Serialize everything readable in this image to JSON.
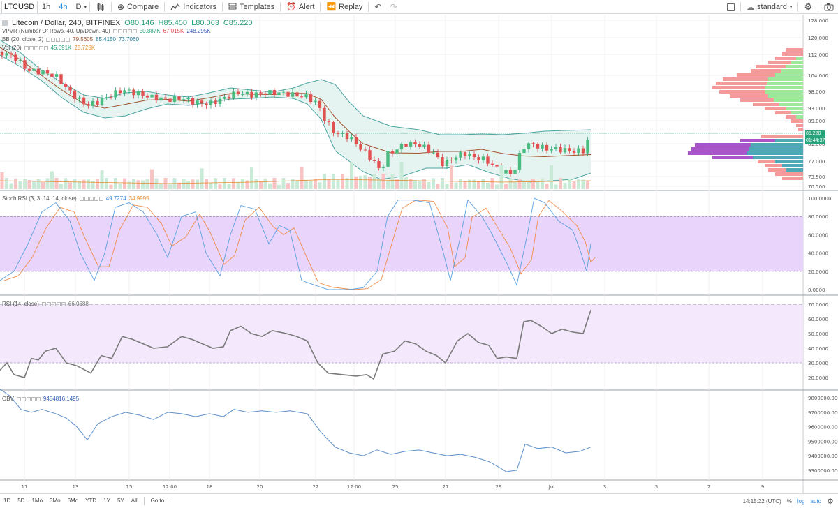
{
  "toolbar": {
    "symbol": "LTCUSD",
    "intervals": [
      "1h",
      "4h",
      "D"
    ],
    "compare": "Compare",
    "indicators": "Indicators",
    "templates": "Templates",
    "alert": "Alert",
    "replay": "Replay",
    "layout": "standard"
  },
  "main": {
    "title": "Litecoin / Dollar, 240, BITFINEX",
    "ohlc": {
      "o": "O80.146",
      "h": "H85.450",
      "l": "L80.063",
      "c": "C85.220"
    },
    "vpvr_label": "VPVR (Number Of Rows, 40, Up/Down, 40)",
    "vpvr_vals": [
      "50.887K",
      "67.015K",
      "248.295K"
    ],
    "bb_label": "BB (20, close, 2)",
    "bb_vals": [
      "79.5605",
      "85.4150",
      "73.7060"
    ],
    "vol_label": "Vol (20)",
    "vol_vals": [
      "45.691K",
      "25.725K"
    ],
    "price_axis": [
      "128.000",
      "120.000",
      "112.000",
      "104.000",
      "98.000",
      "93.000",
      "89.000",
      "81.000",
      "77.000",
      "73.500",
      "70.500"
    ],
    "last_price": "85.220",
    "countdown": "01:44:37"
  },
  "stoch": {
    "label": "Stoch RSI (3, 3, 14, 14, close)",
    "vals": [
      "49.7274",
      "34.9995"
    ],
    "axis": [
      "100.0000",
      "80.0000",
      "60.0000",
      "40.0000",
      "20.0000",
      "0.0000"
    ]
  },
  "rsi": {
    "label": "RSI (14, close)",
    "val": "66.0688",
    "axis": [
      "70.0000",
      "60.0000",
      "50.0000",
      "40.0000",
      "30.0000",
      "20.0000"
    ]
  },
  "obv": {
    "label": "OBV",
    "val": "9454816.1495",
    "axis": [
      "9800000.0000",
      "9700000.0000",
      "9600000.0000",
      "9500000.0000",
      "9400000.0000",
      "9300000.0000"
    ]
  },
  "time_axis": [
    "11",
    "13",
    "15",
    "12:00",
    "18",
    "20",
    "22",
    "12:00",
    "25",
    "27",
    "29",
    "Jul",
    "3",
    "5",
    "7",
    "9"
  ],
  "bottom": {
    "ranges": [
      "1D",
      "5D",
      "1Mo",
      "3Mo",
      "6Mo",
      "YTD",
      "1Y",
      "5Y",
      "All"
    ],
    "goto": "Go to...",
    "clock": "14:15:22 (UTC)",
    "pct": "%",
    "log": "log",
    "auto": "auto"
  },
  "colors": {
    "up": "#6fcf97",
    "down": "#eb5757",
    "bb_fill": "#e6f4f1",
    "bb_line": "#4aa3a0",
    "stoch_fill": "#e9d4fb",
    "rsi_fill": "#f4e8fc",
    "obv_line": "#5b8ec9",
    "vp_up": "#9ee89b",
    "vp_down": "#f59a9a",
    "vp_teal": "#4fa8b5",
    "vp_purple": "#a855c9"
  }
}
